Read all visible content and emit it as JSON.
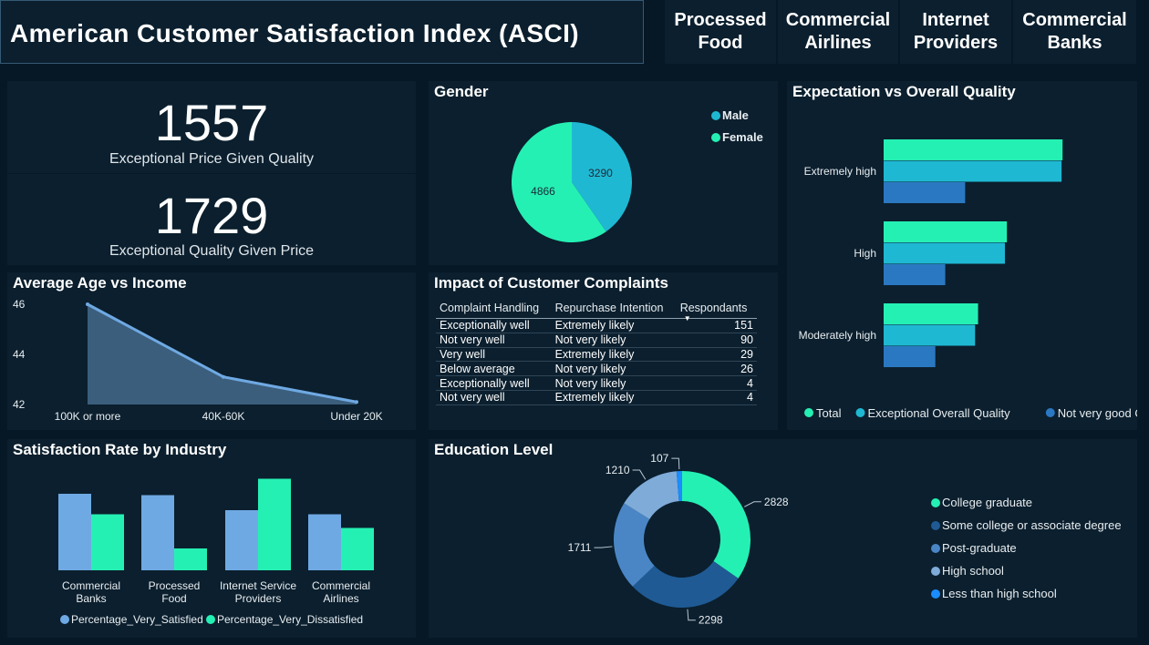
{
  "header": {
    "title": "American Customer Satisfaction Index (ASCI)"
  },
  "nav": [
    {
      "line1": "Processed",
      "line2": "Food"
    },
    {
      "line1": "Commercial",
      "line2": "Airlines"
    },
    {
      "line1": "Internet",
      "line2": "Providers"
    },
    {
      "line1": "Commercial",
      "line2": "Banks"
    }
  ],
  "kpis": [
    {
      "value": "1557",
      "label": "Exceptional Price Given Quality"
    },
    {
      "value": "1729",
      "label": "Exceptional Quality Given Price"
    }
  ],
  "gender": {
    "title": "Gender",
    "legend": [
      "Male",
      "Female"
    ],
    "colors": [
      "#1fb8d3",
      "#25f0b4"
    ]
  },
  "expectation": {
    "title": "Expectation vs Overall Quality",
    "legend": [
      "Total",
      "Exceptional Overall Quality",
      "Not very good OQ"
    ],
    "colors": [
      "#25f0b4",
      "#1fb8d3",
      "#2b78c2"
    ]
  },
  "age_income": {
    "title": "Average Age vs Income"
  },
  "complaints": {
    "title": "Impact of Customer Complaints",
    "columns": [
      "Complaint Handling",
      "Repurchase Intention",
      "Respondants"
    ],
    "rows": [
      [
        "Exceptionally well",
        "Extremely likely",
        "151"
      ],
      [
        "Not very well",
        "Not very likely",
        "90"
      ],
      [
        "Very well",
        "Extremely likely",
        "29"
      ],
      [
        "Below average",
        "Not very likely",
        "26"
      ],
      [
        "Exceptionally well",
        "Not very likely",
        "4"
      ],
      [
        "Not very well",
        "Extremely likely",
        "4"
      ]
    ]
  },
  "industry": {
    "title": "Satisfaction Rate by Industry",
    "category_lines": [
      [
        "Commercial",
        "Banks"
      ],
      [
        "Processed",
        "Food"
      ],
      [
        "Internet Service",
        "Providers"
      ],
      [
        "Commercial",
        "Airlines"
      ]
    ],
    "legend": [
      "Percentage_Very_Satisfied",
      "Percentage_Very_Dissatisfied"
    ],
    "colors": [
      "#6fa9e3",
      "#25f0b4"
    ]
  },
  "education": {
    "title": "Education Level",
    "colors": [
      "#25f0b4",
      "#1f5a94",
      "#4a86c6",
      "#7fabd9",
      "#1a8cff"
    ]
  },
  "chart_data": [
    {
      "type": "pie",
      "title": "Gender",
      "categories": [
        "Male",
        "Female"
      ],
      "values": [
        3290,
        4866
      ]
    },
    {
      "type": "bar",
      "orientation": "horizontal",
      "title": "Expectation vs Overall Quality",
      "categories": [
        "Extremely high",
        "High",
        "Moderately high"
      ],
      "series": [
        {
          "name": "Total",
          "values": [
            1800,
            1240,
            950
          ]
        },
        {
          "name": "Exceptional Overall Quality",
          "values": [
            1790,
            1220,
            920
          ]
        },
        {
          "name": "Not very good OQ",
          "values": [
            820,
            620,
            520
          ]
        }
      ],
      "xlim": [
        0,
        2000
      ]
    },
    {
      "type": "area",
      "title": "Average Age vs Income",
      "categories": [
        "100K or more",
        "40K-60K",
        "Under 20K"
      ],
      "values": [
        46,
        43.1,
        42.1
      ],
      "ylim": [
        42,
        46
      ],
      "yticks": [
        "42",
        "44",
        "46"
      ]
    },
    {
      "type": "bar",
      "title": "Satisfaction Rate by Industry",
      "categories": [
        "Commercial Banks",
        "Processed Food",
        "Internet Service Providers",
        "Commercial Airlines"
      ],
      "series": [
        {
          "name": "Percentage_Very_Satisfied",
          "values": [
            28,
            27.5,
            22,
            20.5
          ]
        },
        {
          "name": "Percentage_Very_Dissatisfied",
          "values": [
            20.5,
            8,
            33.5,
            15.5
          ]
        }
      ],
      "ylim": [
        0,
        35
      ]
    },
    {
      "type": "pie",
      "subtype": "donut",
      "title": "Education Level",
      "categories": [
        "College graduate",
        "Some college or associate degree",
        "Post-graduate",
        "High school",
        "Less than high school"
      ],
      "values": [
        2828,
        2298,
        1711,
        1210,
        107
      ]
    }
  ]
}
